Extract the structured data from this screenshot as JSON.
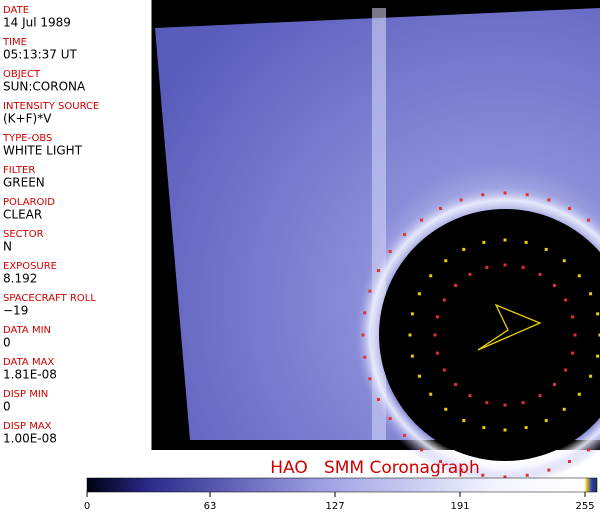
{
  "fields": [
    {
      "label": "DATE",
      "value": "14 Jul 1989"
    },
    {
      "label": "TIME",
      "value": "05:13:37 UT"
    },
    {
      "label": "OBJECT",
      "value": "SUN:CORONA"
    },
    {
      "label": "INTENSITY SOURCE",
      "value": "(K+F)*V"
    },
    {
      "label": "TYPE-OBS",
      "value": "WHITE LIGHT"
    },
    {
      "label": "FILTER",
      "value": "GREEN"
    },
    {
      "label": "POLAROID",
      "value": "CLEAR"
    },
    {
      "label": "SECTOR",
      "value": "N"
    },
    {
      "label": "EXPOSURE",
      "value": "8.192"
    },
    {
      "label": "SPACECRAFT ROLL",
      "value": "−19"
    },
    {
      "label": "DATA MIN",
      "value": "0"
    },
    {
      "label": "DATA MAX",
      "value": "1.81E-08"
    },
    {
      "label": "DISP MIN",
      "value": "0"
    },
    {
      "label": "DISP MAX",
      "value": "1.00E-08"
    }
  ],
  "title": "HAO   SMM Coronagraph",
  "colorbar": {
    "ticks": [
      0,
      63,
      127,
      191,
      255
    ]
  }
}
